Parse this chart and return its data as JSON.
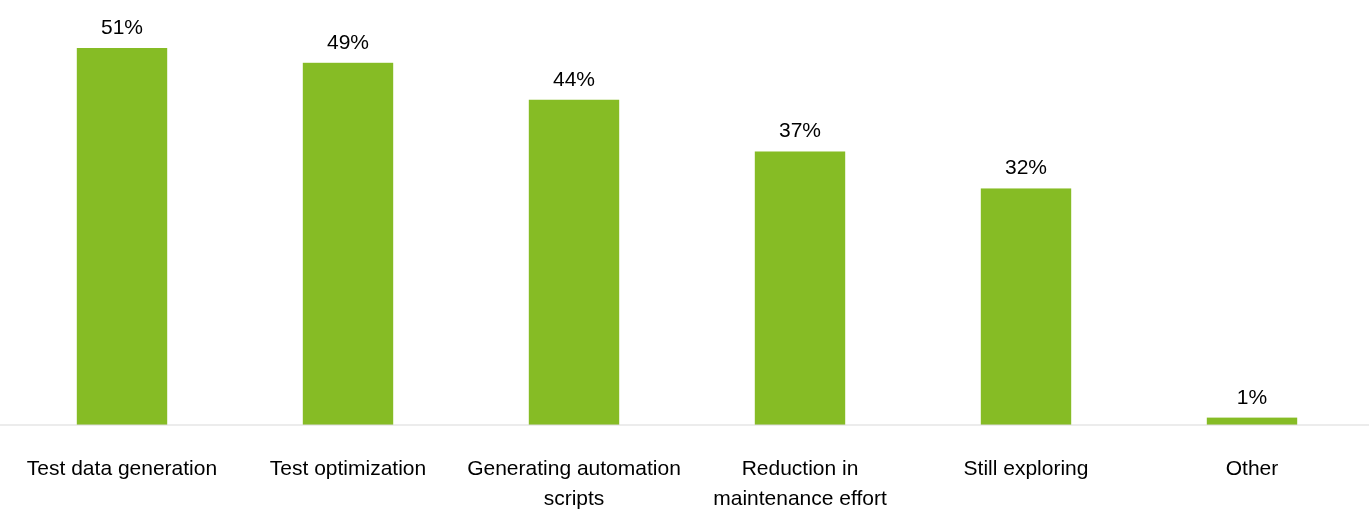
{
  "chart_data": {
    "type": "bar",
    "categories": [
      "Test data generation",
      "Test optimization",
      "Generating automation scripts",
      "Reduction in maintenance effort",
      "Still exploring",
      "Other"
    ],
    "values": [
      51,
      49,
      44,
      37,
      32,
      1
    ],
    "value_labels": [
      "51%",
      "49%",
      "44%",
      "37%",
      "32%",
      "1%"
    ],
    "color": "#86bc25"
  }
}
